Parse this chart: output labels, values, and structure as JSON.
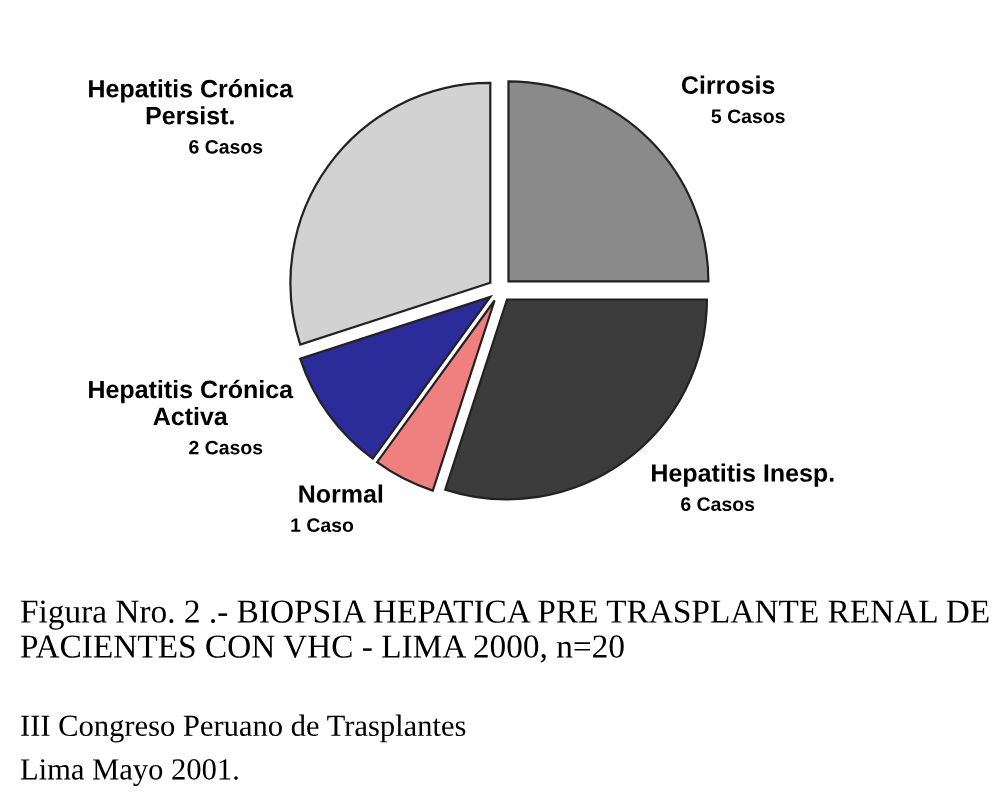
{
  "chart_data": {
    "type": "pie",
    "title": "Figura Nro. 2 .- BIOPSIA HEPATICA PRE TRASPLANTE RENAL DE PACIENTES CON VHC - LIMA 2000, n=20",
    "categories": [
      "Cirrosis",
      "Hepatitis Inesp.",
      "Normal",
      "Hepatitis Crónica\nActiva",
      "Hepatitis Crónica\nPersist."
    ],
    "values": [
      5,
      6,
      1,
      2,
      6
    ],
    "value_labels": [
      "5 Casos",
      "6 Casos",
      "1 Caso",
      "2 Casos",
      "6 Casos"
    ],
    "colors": [
      "#8a8a8a",
      "#3c3c3c",
      "#f08080",
      "#2b2b99",
      "#d2d2d2"
    ],
    "annotations": [
      "III Congreso Peruano de Trasplantes",
      "Lima Mayo 2001."
    ]
  }
}
